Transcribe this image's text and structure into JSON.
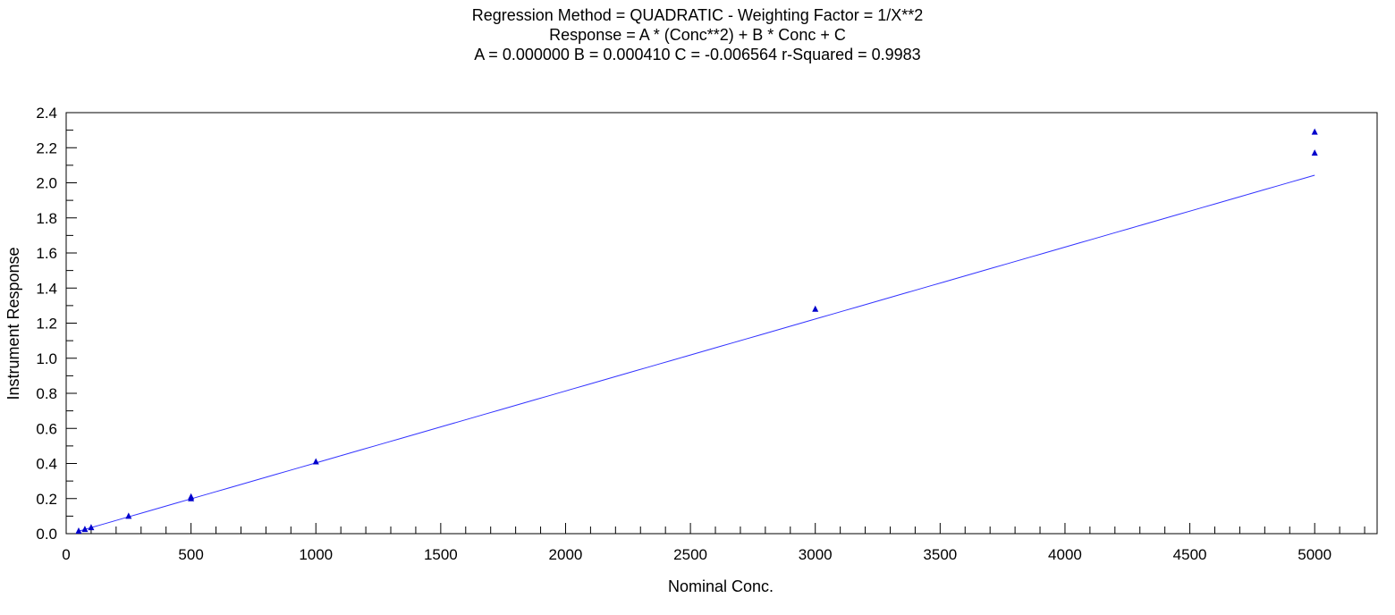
{
  "chart_data": {
    "type": "scatter",
    "title_lines": [
      "Regression Method = QUADRATIC - Weighting Factor = 1/X**2",
      "Response = A * (Conc**2) + B * Conc + C",
      "A = 0.000000 B = 0.000410 C = -0.006564 r-Squared = 0.9983"
    ],
    "xlabel": "Nominal Conc.",
    "ylabel": "Instrument Response",
    "xlim": [
      0,
      5250
    ],
    "ylim": [
      0,
      2.4
    ],
    "x_ticks": [
      0,
      500,
      1000,
      1500,
      2000,
      2500,
      3000,
      3500,
      4000,
      4500,
      5000
    ],
    "x_tick_labels": [
      "0",
      "500",
      "1000",
      "1500",
      "2000",
      "2500",
      "3000",
      "3500",
      "4000",
      "4500",
      "5000"
    ],
    "y_ticks": [
      0,
      0.2,
      0.4,
      0.6,
      0.8,
      1.0,
      1.2,
      1.4,
      1.6,
      1.8,
      2.0,
      2.2,
      2.4
    ],
    "y_tick_labels": [
      "0.0",
      "0.2",
      "0.4",
      "0.6",
      "0.8",
      "1.0",
      "1.2",
      "1.4",
      "1.6",
      "1.8",
      "2.0",
      "2.2",
      "2.4"
    ],
    "series": [
      {
        "marker": "triangle",
        "points": [
          {
            "x": 50,
            "y": 0.015
          },
          {
            "x": 75,
            "y": 0.025
          },
          {
            "x": 100,
            "y": 0.035
          },
          {
            "x": 250,
            "y": 0.1
          },
          {
            "x": 500,
            "y": 0.2
          },
          {
            "x": 500,
            "y": 0.21
          },
          {
            "x": 1000,
            "y": 0.41
          },
          {
            "x": 3000,
            "y": 1.28
          },
          {
            "x": 5000,
            "y": 2.29
          },
          {
            "x": 5000,
            "y": 2.17
          }
        ]
      }
    ],
    "fit": {
      "type": "quadratic",
      "A": 0.0,
      "B": 0.00041,
      "C": -0.006564,
      "x_range": [
        50,
        5000
      ]
    },
    "grid": false,
    "colors": {
      "points": "#0000cc",
      "fit_line": "#3333ff",
      "axes": "#000000"
    }
  }
}
